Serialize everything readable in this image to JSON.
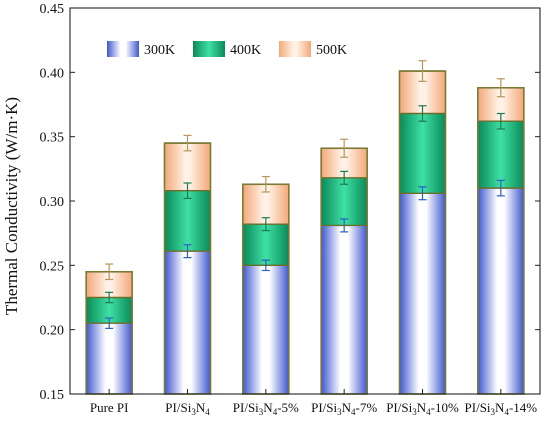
{
  "chart_data": {
    "type": "bar",
    "subtype": "stacked-overlapped",
    "categories": [
      "Pure PI",
      "PI/Si3N4",
      "PI/Si3N4-5%",
      "PI/Si3N4-7%",
      "PI/Si3N4-10%",
      "PI/Si3N4-14%"
    ],
    "series": [
      {
        "name": "300K",
        "values": [
          0.205,
          0.261,
          0.25,
          0.281,
          0.306,
          0.31
        ],
        "errors": [
          0.004,
          0.005,
          0.004,
          0.005,
          0.005,
          0.006
        ],
        "color": "#5b73d8"
      },
      {
        "name": "400K",
        "values": [
          0.225,
          0.308,
          0.282,
          0.318,
          0.368,
          0.362
        ],
        "errors": [
          0.004,
          0.006,
          0.005,
          0.005,
          0.006,
          0.006
        ],
        "color": "#1ea26f"
      },
      {
        "name": "500K",
        "values": [
          0.245,
          0.345,
          0.313,
          0.341,
          0.401,
          0.388
        ],
        "errors": [
          0.006,
          0.006,
          0.006,
          0.007,
          0.008,
          0.007
        ],
        "color": "#f0a870"
      }
    ],
    "title": "",
    "xlabel": "",
    "ylabel": "Thermal Conductivity  (W/m·K)",
    "ylim": [
      0.15,
      0.45
    ],
    "yticks": [
      "0.15",
      "0.20",
      "0.25",
      "0.30",
      "0.35",
      "0.40",
      "0.45"
    ],
    "grid": false,
    "legend_position": "top-left"
  }
}
